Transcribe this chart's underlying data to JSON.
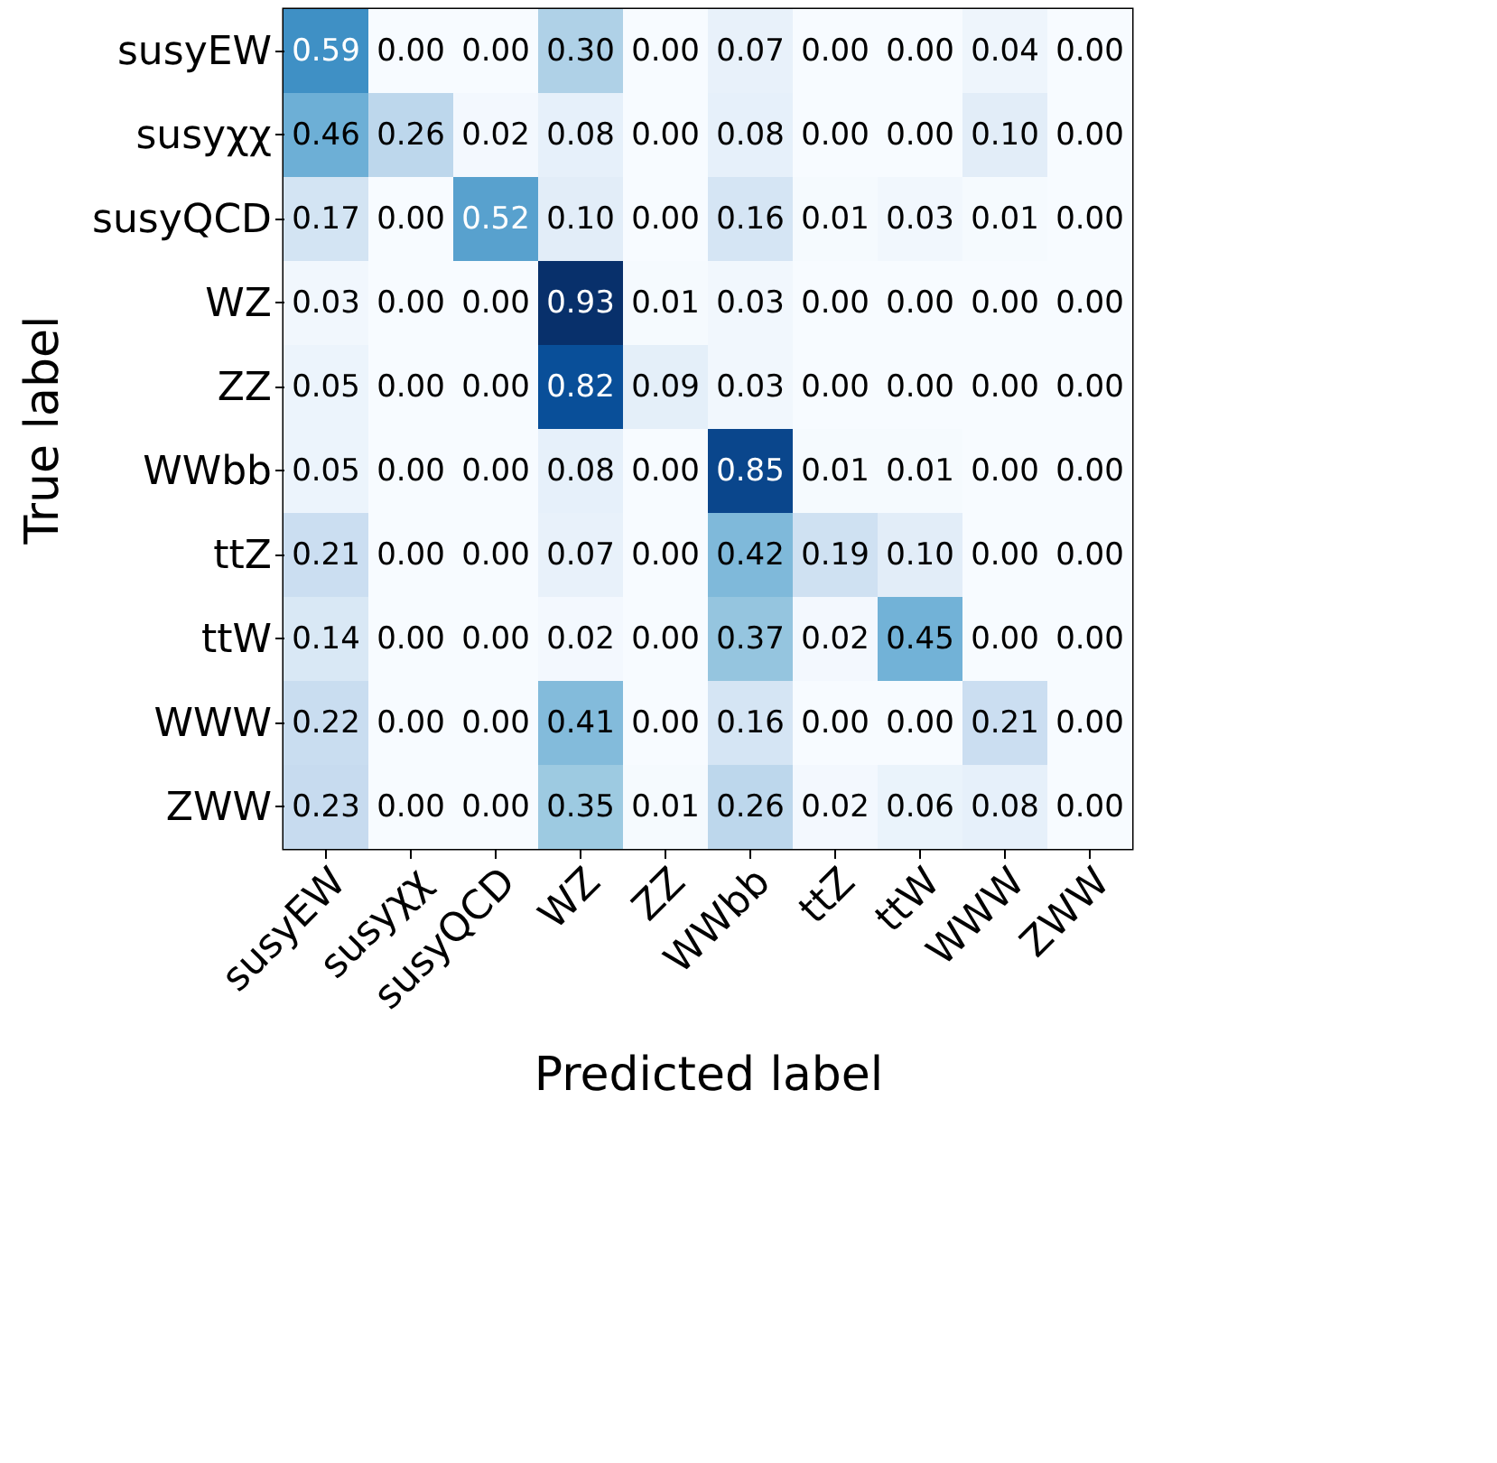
{
  "chart_data": {
    "type": "heatmap",
    "xlabel": "Predicted label",
    "ylabel": "True label",
    "categories": [
      "susyEW",
      "susyχχ",
      "susyQCD",
      "WZ",
      "ZZ",
      "WWbb",
      "ttZ",
      "ttW",
      "WWW",
      "ZWW"
    ],
    "y_categories": [
      "susyEW",
      "susyχχ",
      "susyQCD",
      "WZ",
      "ZZ",
      "WWbb",
      "ttZ",
      "ttW",
      "WWW",
      "ZWW"
    ],
    "cells": [
      [
        0.59,
        0.0,
        0.0,
        0.3,
        0.0,
        0.07,
        0.0,
        0.0,
        0.04,
        0.0
      ],
      [
        0.46,
        0.26,
        0.02,
        0.08,
        0.0,
        0.08,
        0.0,
        0.0,
        0.1,
        0.0
      ],
      [
        0.17,
        0.0,
        0.52,
        0.1,
        0.0,
        0.16,
        0.01,
        0.03,
        0.01,
        0.0
      ],
      [
        0.03,
        0.0,
        0.0,
        0.93,
        0.01,
        0.03,
        0.0,
        0.0,
        0.0,
        0.0
      ],
      [
        0.05,
        0.0,
        0.0,
        0.82,
        0.09,
        0.03,
        0.0,
        0.0,
        0.0,
        0.0
      ],
      [
        0.05,
        0.0,
        0.0,
        0.08,
        0.0,
        0.85,
        0.01,
        0.01,
        0.0,
        0.0
      ],
      [
        0.21,
        0.0,
        0.0,
        0.07,
        0.0,
        0.42,
        0.19,
        0.1,
        0.0,
        0.0
      ],
      [
        0.14,
        0.0,
        0.0,
        0.02,
        0.0,
        0.37,
        0.02,
        0.45,
        0.0,
        0.0
      ],
      [
        0.22,
        0.0,
        0.0,
        0.41,
        0.0,
        0.16,
        0.0,
        0.0,
        0.21,
        0.0
      ],
      [
        0.23,
        0.0,
        0.0,
        0.35,
        0.01,
        0.26,
        0.02,
        0.06,
        0.08,
        0.0
      ]
    ],
    "cell_labels": [
      [
        "0.59",
        "0.00",
        "0.00",
        "0.30",
        "0.00",
        "0.07",
        "0.00",
        "0.00",
        "0.04",
        "0.00"
      ],
      [
        "0.46",
        "0.26",
        "0.02",
        "0.08",
        "0.00",
        "0.08",
        "0.00",
        "0.00",
        "0.10",
        "0.00"
      ],
      [
        "0.17",
        "0.00",
        "0.52",
        "0.10",
        "0.00",
        "0.16",
        "0.01",
        "0.03",
        "0.01",
        "0.00"
      ],
      [
        "0.03",
        "0.00",
        "0.00",
        "0.93",
        "0.01",
        "0.03",
        "0.00",
        "0.00",
        "0.00",
        "0.00"
      ],
      [
        "0.05",
        "0.00",
        "0.00",
        "0.82",
        "0.09",
        "0.03",
        "0.00",
        "0.00",
        "0.00",
        "0.00"
      ],
      [
        "0.05",
        "0.00",
        "0.00",
        "0.08",
        "0.00",
        "0.85",
        "0.01",
        "0.01",
        "0.00",
        "0.00"
      ],
      [
        "0.21",
        "0.00",
        "0.00",
        "0.07",
        "0.00",
        "0.42",
        "0.19",
        "0.10",
        "0.00",
        "0.00"
      ],
      [
        "0.14",
        "0.00",
        "0.00",
        "0.02",
        "0.00",
        "0.37",
        "0.02",
        "0.45",
        "0.00",
        "0.00"
      ],
      [
        "0.22",
        "0.00",
        "0.00",
        "0.41",
        "0.00",
        "0.16",
        "0.00",
        "0.00",
        "0.21",
        "0.00"
      ],
      [
        "0.23",
        "0.00",
        "0.00",
        "0.35",
        "0.01",
        "0.26",
        "0.02",
        "0.06",
        "0.08",
        "0.00"
      ]
    ]
  }
}
